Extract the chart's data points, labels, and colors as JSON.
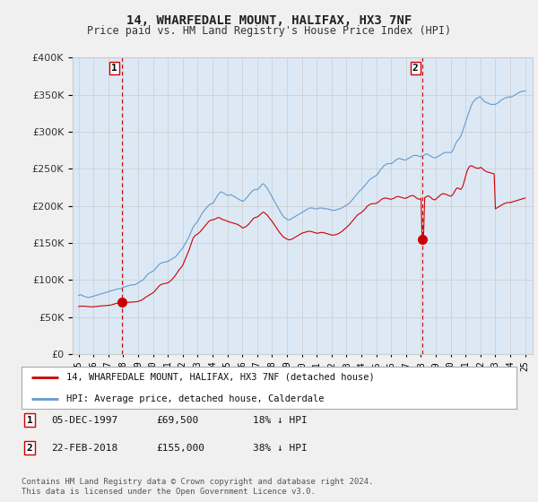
{
  "title": "14, WHARFEDALE MOUNT, HALIFAX, HX3 7NF",
  "subtitle": "Price paid vs. HM Land Registry's House Price Index (HPI)",
  "bg_color": "#f0f0f0",
  "plot_bg_color": "#dce9f5",
  "red_color": "#cc0000",
  "blue_color": "#6699cc",
  "marker1_date_x": 1997.92,
  "marker1_y": 69500,
  "marker2_date_x": 2018.12,
  "marker2_y": 155000,
  "ylim": [
    0,
    400000
  ],
  "yticks": [
    0,
    50000,
    100000,
    150000,
    200000,
    250000,
    300000,
    350000,
    400000
  ],
  "xlim": [
    1994.6,
    2025.5
  ],
  "xtick_years": [
    1995,
    1996,
    1997,
    1998,
    1999,
    2000,
    2001,
    2002,
    2003,
    2004,
    2005,
    2006,
    2007,
    2008,
    2009,
    2010,
    2011,
    2012,
    2013,
    2014,
    2015,
    2016,
    2017,
    2018,
    2019,
    2020,
    2021,
    2022,
    2023,
    2024,
    2025
  ],
  "legend_label_red": "14, WHARFEDALE MOUNT, HALIFAX, HX3 7NF (detached house)",
  "legend_label_blue": "HPI: Average price, detached house, Calderdale",
  "table_rows": [
    {
      "num": "1",
      "date": "05-DEC-1997",
      "price": "£69,500",
      "pct": "18% ↓ HPI"
    },
    {
      "num": "2",
      "date": "22-FEB-2018",
      "price": "£155,000",
      "pct": "38% ↓ HPI"
    }
  ],
  "footer": "Contains HM Land Registry data © Crown copyright and database right 2024.\nThis data is licensed under the Open Government Licence v3.0.",
  "hpi_x": [
    1995.0,
    1995.083,
    1995.167,
    1995.25,
    1995.333,
    1995.417,
    1995.5,
    1995.583,
    1995.667,
    1995.75,
    1995.833,
    1995.917,
    1996.0,
    1996.083,
    1996.167,
    1996.25,
    1996.333,
    1996.417,
    1996.5,
    1996.583,
    1996.667,
    1996.75,
    1996.833,
    1996.917,
    1997.0,
    1997.083,
    1997.167,
    1997.25,
    1997.333,
    1997.417,
    1997.5,
    1997.583,
    1997.667,
    1997.75,
    1997.833,
    1997.917,
    1998.0,
    1998.083,
    1998.167,
    1998.25,
    1998.333,
    1998.417,
    1998.5,
    1998.583,
    1998.667,
    1998.75,
    1998.833,
    1998.917,
    1999.0,
    1999.083,
    1999.167,
    1999.25,
    1999.333,
    1999.417,
    1999.5,
    1999.583,
    1999.667,
    1999.75,
    1999.833,
    1999.917,
    2000.0,
    2000.083,
    2000.167,
    2000.25,
    2000.333,
    2000.417,
    2000.5,
    2000.583,
    2000.667,
    2000.75,
    2000.833,
    2000.917,
    2001.0,
    2001.083,
    2001.167,
    2001.25,
    2001.333,
    2001.417,
    2001.5,
    2001.583,
    2001.667,
    2001.75,
    2001.833,
    2001.917,
    2002.0,
    2002.083,
    2002.167,
    2002.25,
    2002.333,
    2002.417,
    2002.5,
    2002.583,
    2002.667,
    2002.75,
    2002.833,
    2002.917,
    2003.0,
    2003.083,
    2003.167,
    2003.25,
    2003.333,
    2003.417,
    2003.5,
    2003.583,
    2003.667,
    2003.75,
    2003.833,
    2003.917,
    2004.0,
    2004.083,
    2004.167,
    2004.25,
    2004.333,
    2004.417,
    2004.5,
    2004.583,
    2004.667,
    2004.75,
    2004.833,
    2004.917,
    2005.0,
    2005.083,
    2005.167,
    2005.25,
    2005.333,
    2005.417,
    2005.5,
    2005.583,
    2005.667,
    2005.75,
    2005.833,
    2005.917,
    2006.0,
    2006.083,
    2006.167,
    2006.25,
    2006.333,
    2006.417,
    2006.5,
    2006.583,
    2006.667,
    2006.75,
    2006.833,
    2006.917,
    2007.0,
    2007.083,
    2007.167,
    2007.25,
    2007.333,
    2007.417,
    2007.5,
    2007.583,
    2007.667,
    2007.75,
    2007.833,
    2007.917,
    2008.0,
    2008.083,
    2008.167,
    2008.25,
    2008.333,
    2008.417,
    2008.5,
    2008.583,
    2008.667,
    2008.75,
    2008.833,
    2008.917,
    2009.0,
    2009.083,
    2009.167,
    2009.25,
    2009.333,
    2009.417,
    2009.5,
    2009.583,
    2009.667,
    2009.75,
    2009.833,
    2009.917,
    2010.0,
    2010.083,
    2010.167,
    2010.25,
    2010.333,
    2010.417,
    2010.5,
    2010.583,
    2010.667,
    2010.75,
    2010.833,
    2010.917,
    2011.0,
    2011.083,
    2011.167,
    2011.25,
    2011.333,
    2011.417,
    2011.5,
    2011.583,
    2011.667,
    2011.75,
    2011.833,
    2011.917,
    2012.0,
    2012.083,
    2012.167,
    2012.25,
    2012.333,
    2012.417,
    2012.5,
    2012.583,
    2012.667,
    2012.75,
    2012.833,
    2012.917,
    2013.0,
    2013.083,
    2013.167,
    2013.25,
    2013.333,
    2013.417,
    2013.5,
    2013.583,
    2013.667,
    2013.75,
    2013.833,
    2013.917,
    2014.0,
    2014.083,
    2014.167,
    2014.25,
    2014.333,
    2014.417,
    2014.5,
    2014.583,
    2014.667,
    2014.75,
    2014.833,
    2014.917,
    2015.0,
    2015.083,
    2015.167,
    2015.25,
    2015.333,
    2015.417,
    2015.5,
    2015.583,
    2015.667,
    2015.75,
    2015.833,
    2015.917,
    2016.0,
    2016.083,
    2016.167,
    2016.25,
    2016.333,
    2016.417,
    2016.5,
    2016.583,
    2016.667,
    2016.75,
    2016.833,
    2016.917,
    2017.0,
    2017.083,
    2017.167,
    2017.25,
    2017.333,
    2017.417,
    2017.5,
    2017.583,
    2017.667,
    2017.75,
    2017.833,
    2017.917,
    2018.0,
    2018.083,
    2018.167,
    2018.25,
    2018.333,
    2018.417,
    2018.5,
    2018.583,
    2018.667,
    2018.75,
    2018.833,
    2018.917,
    2019.0,
    2019.083,
    2019.167,
    2019.25,
    2019.333,
    2019.417,
    2019.5,
    2019.583,
    2019.667,
    2019.75,
    2019.833,
    2019.917,
    2020.0,
    2020.083,
    2020.167,
    2020.25,
    2020.333,
    2020.417,
    2020.5,
    2020.583,
    2020.667,
    2020.75,
    2020.833,
    2020.917,
    2021.0,
    2021.083,
    2021.167,
    2021.25,
    2021.333,
    2021.417,
    2021.5,
    2021.583,
    2021.667,
    2021.75,
    2021.833,
    2021.917,
    2022.0,
    2022.083,
    2022.167,
    2022.25,
    2022.333,
    2022.417,
    2022.5,
    2022.583,
    2022.667,
    2022.75,
    2022.833,
    2022.917,
    2023.0,
    2023.083,
    2023.167,
    2023.25,
    2023.333,
    2023.417,
    2023.5,
    2023.583,
    2023.667,
    2023.75,
    2023.833,
    2023.917,
    2024.0,
    2024.083,
    2024.167,
    2024.25,
    2024.333,
    2024.417,
    2024.5,
    2024.583,
    2024.667,
    2024.75,
    2024.833,
    2024.917,
    2025.0
  ],
  "hpi_y": [
    79000,
    79500,
    80000,
    79000,
    78000,
    77500,
    77000,
    76500,
    76000,
    76500,
    77000,
    77500,
    78000,
    78500,
    79000,
    79500,
    80000,
    80500,
    81000,
    81500,
    82000,
    82500,
    83000,
    83500,
    84000,
    84500,
    85000,
    85500,
    86000,
    86500,
    87000,
    87500,
    88000,
    88000,
    88500,
    89000,
    90000,
    90500,
    91000,
    91500,
    92000,
    92500,
    93000,
    93500,
    93000,
    93500,
    94000,
    95000,
    96000,
    97000,
    98000,
    99000,
    100000,
    102000,
    104000,
    106000,
    108000,
    109000,
    110000,
    111000,
    112000,
    113000,
    115000,
    117000,
    119000,
    121000,
    122000,
    123000,
    123500,
    124000,
    124000,
    124500,
    125000,
    126000,
    127000,
    128000,
    129000,
    130000,
    131000,
    133000,
    135000,
    137000,
    139000,
    141000,
    143000,
    146000,
    149000,
    152000,
    155000,
    158000,
    162000,
    166000,
    170000,
    173000,
    175000,
    177000,
    179000,
    182000,
    185000,
    188000,
    191000,
    193000,
    195000,
    197000,
    199000,
    201000,
    202000,
    203000,
    203000,
    205000,
    208000,
    211000,
    214000,
    216000,
    218000,
    219000,
    218000,
    217000,
    216000,
    215000,
    214000,
    214000,
    215000,
    215000,
    214000,
    213000,
    212000,
    211000,
    210000,
    209000,
    208000,
    207000,
    206000,
    207000,
    208000,
    210000,
    212000,
    214000,
    216000,
    218000,
    220000,
    221000,
    222000,
    222000,
    222000,
    223000,
    225000,
    227000,
    229000,
    230000,
    228000,
    226000,
    224000,
    221000,
    218000,
    215000,
    212000,
    209000,
    206000,
    203000,
    200000,
    197000,
    194000,
    191000,
    188000,
    186000,
    184000,
    183000,
    182000,
    181000,
    181000,
    182000,
    183000,
    184000,
    185000,
    186000,
    187000,
    188000,
    189000,
    190000,
    191000,
    192000,
    193000,
    194000,
    195000,
    196000,
    197000,
    197000,
    197000,
    197000,
    196000,
    196000,
    196000,
    196000,
    197000,
    197000,
    197000,
    197000,
    196000,
    196000,
    196000,
    196000,
    195000,
    195000,
    194000,
    194000,
    194000,
    194000,
    195000,
    195000,
    196000,
    196000,
    197000,
    198000,
    199000,
    200000,
    201000,
    202000,
    203000,
    205000,
    207000,
    209000,
    211000,
    213000,
    215000,
    217000,
    219000,
    221000,
    222000,
    224000,
    226000,
    228000,
    230000,
    232000,
    234000,
    236000,
    237000,
    238000,
    239000,
    240000,
    241000,
    243000,
    245000,
    248000,
    250000,
    252000,
    254000,
    255000,
    256000,
    257000,
    257000,
    257000,
    257000,
    258000,
    259000,
    261000,
    262000,
    263000,
    264000,
    264000,
    263000,
    263000,
    262000,
    262000,
    262000,
    263000,
    264000,
    265000,
    266000,
    267000,
    268000,
    268000,
    268000,
    268000,
    267000,
    267000,
    266000,
    267000,
    268000,
    269000,
    270000,
    270000,
    269000,
    268000,
    267000,
    266000,
    265000,
    265000,
    265000,
    266000,
    267000,
    268000,
    269000,
    270000,
    271000,
    272000,
    272000,
    272000,
    272000,
    272000,
    272000,
    273000,
    276000,
    280000,
    284000,
    287000,
    289000,
    291000,
    294000,
    298000,
    303000,
    308000,
    313000,
    318000,
    323000,
    328000,
    333000,
    337000,
    340000,
    342000,
    344000,
    345000,
    346000,
    347000,
    347000,
    345000,
    343000,
    341000,
    340000,
    339000,
    339000,
    338000,
    337000,
    337000,
    337000,
    337000,
    337000,
    338000,
    339000,
    340000,
    342000,
    343000,
    344000,
    345000,
    346000,
    346000,
    347000,
    347000,
    347000,
    347000,
    348000,
    349000,
    350000,
    351000,
    352000,
    353000,
    354000,
    354000,
    355000,
    355000,
    355000
  ],
  "red_x": [
    1995.0,
    1995.083,
    1995.167,
    1995.25,
    1995.333,
    1995.417,
    1995.5,
    1995.583,
    1995.667,
    1995.75,
    1995.833,
    1995.917,
    1996.0,
    1996.083,
    1996.167,
    1996.25,
    1996.333,
    1996.417,
    1996.5,
    1996.583,
    1996.667,
    1996.75,
    1996.833,
    1996.917,
    1997.0,
    1997.083,
    1997.167,
    1997.25,
    1997.333,
    1997.417,
    1997.5,
    1997.583,
    1997.667,
    1997.75,
    1997.833,
    1997.917,
    1998.0,
    1998.083,
    1998.167,
    1998.25,
    1998.333,
    1998.417,
    1998.5,
    1998.583,
    1998.667,
    1998.75,
    1998.833,
    1998.917,
    1999.0,
    1999.083,
    1999.167,
    1999.25,
    1999.333,
    1999.417,
    1999.5,
    1999.583,
    1999.667,
    1999.75,
    1999.833,
    1999.917,
    2000.0,
    2000.083,
    2000.167,
    2000.25,
    2000.333,
    2000.417,
    2000.5,
    2000.583,
    2000.667,
    2000.75,
    2000.833,
    2000.917,
    2001.0,
    2001.083,
    2001.167,
    2001.25,
    2001.333,
    2001.417,
    2001.5,
    2001.583,
    2001.667,
    2001.75,
    2001.833,
    2001.917,
    2002.0,
    2002.083,
    2002.167,
    2002.25,
    2002.333,
    2002.417,
    2002.5,
    2002.583,
    2002.667,
    2002.75,
    2002.833,
    2002.917,
    2003.0,
    2003.083,
    2003.167,
    2003.25,
    2003.333,
    2003.417,
    2003.5,
    2003.583,
    2003.667,
    2003.75,
    2003.833,
    2003.917,
    2004.0,
    2004.083,
    2004.167,
    2004.25,
    2004.333,
    2004.417,
    2004.5,
    2004.583,
    2004.667,
    2004.75,
    2004.833,
    2004.917,
    2005.0,
    2005.083,
    2005.167,
    2005.25,
    2005.333,
    2005.417,
    2005.5,
    2005.583,
    2005.667,
    2005.75,
    2005.833,
    2005.917,
    2006.0,
    2006.083,
    2006.167,
    2006.25,
    2006.333,
    2006.417,
    2006.5,
    2006.583,
    2006.667,
    2006.75,
    2006.833,
    2006.917,
    2007.0,
    2007.083,
    2007.167,
    2007.25,
    2007.333,
    2007.417,
    2007.5,
    2007.583,
    2007.667,
    2007.75,
    2007.833,
    2007.917,
    2008.0,
    2008.083,
    2008.167,
    2008.25,
    2008.333,
    2008.417,
    2008.5,
    2008.583,
    2008.667,
    2008.75,
    2008.833,
    2008.917,
    2009.0,
    2009.083,
    2009.167,
    2009.25,
    2009.333,
    2009.417,
    2009.5,
    2009.583,
    2009.667,
    2009.75,
    2009.833,
    2009.917,
    2010.0,
    2010.083,
    2010.167,
    2010.25,
    2010.333,
    2010.417,
    2010.5,
    2010.583,
    2010.667,
    2010.75,
    2010.833,
    2010.917,
    2011.0,
    2011.083,
    2011.167,
    2011.25,
    2011.333,
    2011.417,
    2011.5,
    2011.583,
    2011.667,
    2011.75,
    2011.833,
    2011.917,
    2012.0,
    2012.083,
    2012.167,
    2012.25,
    2012.333,
    2012.417,
    2012.5,
    2012.583,
    2012.667,
    2012.75,
    2012.833,
    2012.917,
    2013.0,
    2013.083,
    2013.167,
    2013.25,
    2013.333,
    2013.417,
    2013.5,
    2013.583,
    2013.667,
    2013.75,
    2013.833,
    2013.917,
    2014.0,
    2014.083,
    2014.167,
    2014.25,
    2014.333,
    2014.417,
    2014.5,
    2014.583,
    2014.667,
    2014.75,
    2014.833,
    2014.917,
    2015.0,
    2015.083,
    2015.167,
    2015.25,
    2015.333,
    2015.417,
    2015.5,
    2015.583,
    2015.667,
    2015.75,
    2015.833,
    2015.917,
    2016.0,
    2016.083,
    2016.167,
    2016.25,
    2016.333,
    2016.417,
    2016.5,
    2016.583,
    2016.667,
    2016.75,
    2016.833,
    2016.917,
    2017.0,
    2017.083,
    2017.167,
    2017.25,
    2017.333,
    2017.417,
    2017.5,
    2017.583,
    2017.667,
    2017.75,
    2017.833,
    2017.917,
    2018.0,
    2018.083,
    2018.167,
    2018.25,
    2018.333,
    2018.417,
    2018.5,
    2018.583,
    2018.667,
    2018.75,
    2018.833,
    2018.917,
    2019.0,
    2019.083,
    2019.167,
    2019.25,
    2019.333,
    2019.417,
    2019.5,
    2019.583,
    2019.667,
    2019.75,
    2019.833,
    2019.917,
    2020.0,
    2020.083,
    2020.167,
    2020.25,
    2020.333,
    2020.417,
    2020.5,
    2020.583,
    2020.667,
    2020.75,
    2020.833,
    2020.917,
    2021.0,
    2021.083,
    2021.167,
    2021.25,
    2021.333,
    2021.417,
    2021.5,
    2021.583,
    2021.667,
    2021.75,
    2021.833,
    2021.917,
    2022.0,
    2022.083,
    2022.167,
    2022.25,
    2022.333,
    2022.417,
    2022.5,
    2022.583,
    2022.667,
    2022.75,
    2022.833,
    2022.917,
    2023.0,
    2023.083,
    2023.167,
    2023.25,
    2023.333,
    2023.417,
    2023.5,
    2023.583,
    2023.667,
    2023.75,
    2023.833,
    2023.917,
    2024.0,
    2024.083,
    2024.167,
    2024.25,
    2024.333,
    2024.417,
    2024.5,
    2024.583,
    2024.667,
    2024.75,
    2024.833,
    2024.917,
    2025.0
  ],
  "red_y": [
    64000,
    64200,
    64400,
    64600,
    64500,
    64400,
    64200,
    64000,
    63800,
    63600,
    63500,
    63600,
    63700,
    63800,
    64000,
    64200,
    64400,
    64600,
    64800,
    65000,
    65000,
    65000,
    65200,
    65400,
    65500,
    65700,
    66000,
    66500,
    67000,
    67500,
    68000,
    68500,
    69000,
    69500,
    69500,
    69500,
    69500,
    69500,
    69500,
    69600,
    69700,
    69800,
    69900,
    70000,
    70000,
    70100,
    70300,
    70500,
    71000,
    71500,
    72000,
    73000,
    74000,
    75000,
    76500,
    77500,
    78500,
    79500,
    80500,
    81500,
    82500,
    84000,
    86000,
    88000,
    90000,
    92000,
    93000,
    94000,
    94500,
    95000,
    95200,
    95500,
    96000,
    97000,
    98500,
    100000,
    102000,
    104000,
    106000,
    108500,
    111000,
    113500,
    115500,
    117500,
    120000,
    124000,
    128000,
    132000,
    136000,
    140000,
    145000,
    150000,
    155000,
    158000,
    160000,
    161000,
    162000,
    163500,
    165000,
    167000,
    169000,
    171000,
    173000,
    175000,
    177000,
    179000,
    180000,
    181000,
    181000,
    181500,
    182000,
    183000,
    184000,
    184000,
    183500,
    182500,
    181500,
    181000,
    180500,
    180000,
    179000,
    178500,
    178000,
    177500,
    177000,
    176500,
    176000,
    175500,
    175000,
    174000,
    173000,
    172000,
    170000,
    170500,
    171000,
    172000,
    173500,
    175000,
    177000,
    179000,
    181000,
    183000,
    184000,
    184500,
    185000,
    186000,
    187500,
    189000,
    190500,
    191500,
    190500,
    189000,
    187500,
    185500,
    183000,
    181000,
    179000,
    176500,
    174000,
    171500,
    169000,
    166500,
    164000,
    162000,
    160000,
    158000,
    157000,
    156000,
    155000,
    154500,
    154000,
    154500,
    155000,
    156000,
    157000,
    158000,
    159000,
    160000,
    161000,
    162000,
    163000,
    163500,
    164000,
    164500,
    165000,
    165500,
    165500,
    165500,
    165000,
    164500,
    164000,
    163500,
    163000,
    163000,
    163500,
    164000,
    164000,
    164000,
    163500,
    163000,
    162500,
    162000,
    161500,
    161000,
    160500,
    160500,
    160500,
    161000,
    161500,
    162000,
    163000,
    164000,
    165000,
    166500,
    168000,
    169500,
    171000,
    172500,
    174000,
    176000,
    178000,
    180000,
    182000,
    184000,
    186000,
    188000,
    189000,
    190000,
    191000,
    192500,
    194000,
    196000,
    198000,
    200000,
    201000,
    202000,
    202500,
    203000,
    203000,
    203000,
    203500,
    204500,
    205500,
    207000,
    208500,
    209500,
    210000,
    210500,
    210500,
    210000,
    209500,
    209000,
    209000,
    209500,
    210000,
    211000,
    212000,
    212500,
    212500,
    212000,
    211500,
    211000,
    210500,
    210000,
    210500,
    211000,
    212000,
    213000,
    213500,
    214000,
    213500,
    212500,
    211000,
    210000,
    209000,
    209000,
    210000,
    155000,
    155000,
    211000,
    212000,
    213000,
    213500,
    212500,
    211000,
    209500,
    208500,
    208000,
    209000,
    210500,
    212000,
    213500,
    215000,
    216000,
    216500,
    216000,
    215500,
    215000,
    214000,
    213500,
    213000,
    214000,
    216000,
    219000,
    222000,
    224000,
    224000,
    223000,
    222000,
    224000,
    228000,
    234000,
    240000,
    246000,
    250000,
    253000,
    254000,
    254000,
    253000,
    252000,
    251500,
    251000,
    250500,
    251000,
    252000,
    251000,
    249500,
    248000,
    247000,
    246000,
    245500,
    245000,
    244500,
    244000,
    243500,
    243000,
    196000,
    197000,
    198000,
    199000,
    200000,
    201000,
    202000,
    203000,
    203500,
    204000,
    204500,
    204500,
    204500,
    205000,
    205500,
    206000,
    206500,
    207000,
    207500,
    208000,
    208500,
    209000,
    209500,
    210000,
    210500
  ]
}
